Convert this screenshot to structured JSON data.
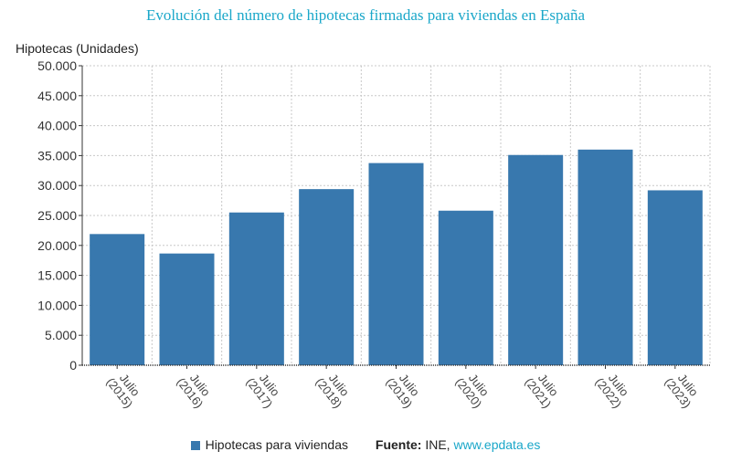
{
  "chart_data": {
    "type": "bar",
    "title": "Evolución del número de hipotecas firmadas para viviendas en España",
    "ylabel": "Hipotecas (Unidades)",
    "xlabel": "",
    "categories": [
      [
        "Julio",
        "(2015)"
      ],
      [
        "Julio",
        "(2016)"
      ],
      [
        "Julio",
        "(2017)"
      ],
      [
        "Julio",
        "(2018)"
      ],
      [
        "Julio",
        "(2019)"
      ],
      [
        "Julio",
        "(2020)"
      ],
      [
        "Julio",
        "(2021)"
      ],
      [
        "Julio",
        "(2022)"
      ],
      [
        "Julio",
        "(2023)"
      ]
    ],
    "series": [
      {
        "name": "Hipotecas para viviendas",
        "values": [
          21900,
          18650,
          25500,
          29400,
          33750,
          25800,
          35100,
          36000,
          29200
        ],
        "color": "#3878ae"
      }
    ],
    "ylim": [
      0,
      50000
    ],
    "yticks": [
      "0",
      "5.000",
      "10.000",
      "15.000",
      "20.000",
      "25.000",
      "30.000",
      "35.000",
      "40.000",
      "45.000",
      "50.000"
    ],
    "grid": true,
    "legend": "bottom-center"
  },
  "source": {
    "label": "Fuente:",
    "text": "INE,",
    "link": "www.epdata.es"
  }
}
